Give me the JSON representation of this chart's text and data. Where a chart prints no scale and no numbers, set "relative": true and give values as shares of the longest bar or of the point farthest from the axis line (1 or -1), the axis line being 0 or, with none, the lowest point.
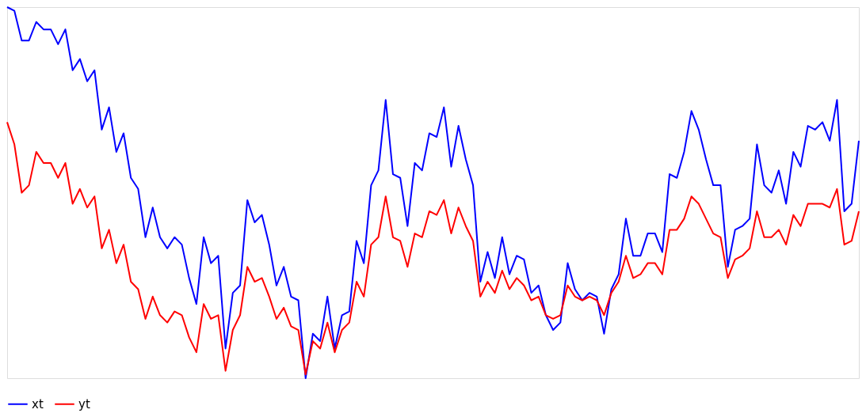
{
  "chart_data": {
    "type": "line",
    "relative": true,
    "legend": "bottom",
    "marker": "none",
    "line_style": "solid",
    "categories": [
      null,
      null,
      null,
      null,
      null,
      null,
      null,
      null,
      null,
      null,
      null,
      null,
      null,
      null,
      null,
      null,
      null,
      null,
      null,
      null,
      null,
      null,
      null,
      null,
      null,
      null,
      null,
      null,
      null,
      null,
      null,
      null,
      null,
      null,
      null,
      null,
      null,
      null,
      null,
      null,
      null,
      null,
      null,
      null,
      null,
      null,
      null,
      null,
      null,
      null,
      null,
      null,
      null,
      null,
      null,
      null,
      null,
      null,
      null,
      null,
      null,
      null,
      null,
      null,
      null,
      null,
      null,
      null,
      null,
      null,
      null,
      null,
      null,
      null,
      null,
      null,
      null,
      null,
      null,
      null,
      null,
      null,
      null,
      null,
      null,
      null,
      null,
      null,
      null,
      null,
      null,
      null,
      null,
      null,
      null,
      null,
      null,
      null,
      null,
      null,
      null,
      null,
      null,
      null,
      null,
      null,
      null,
      null,
      null,
      null,
      null,
      null,
      null,
      null,
      null,
      null,
      null,
      null
    ],
    "series": [
      {
        "name": "xt",
        "color": "#0000ff",
        "values": [
          1.0,
          0.99,
          0.91,
          0.91,
          0.96,
          0.94,
          0.94,
          0.9,
          0.94,
          0.83,
          0.86,
          0.8,
          0.83,
          0.67,
          0.73,
          0.61,
          0.66,
          0.54,
          0.51,
          0.38,
          0.46,
          0.38,
          0.35,
          0.38,
          0.36,
          0.27,
          0.2,
          0.38,
          0.31,
          0.33,
          0.08,
          0.23,
          0.25,
          0.48,
          0.42,
          0.44,
          0.36,
          0.25,
          0.3,
          0.22,
          0.21,
          0,
          0.12,
          0.1,
          0.22,
          0.08,
          0.17,
          0.18,
          0.37,
          0.31,
          0.52,
          0.56,
          0.75,
          0.55,
          0.54,
          0.41,
          0.58,
          0.56,
          0.66,
          0.65,
          0.73,
          0.57,
          0.68,
          0.59,
          0.52,
          0.26,
          0.34,
          0.27,
          0.38,
          0.28,
          0.33,
          0.32,
          0.23,
          0.25,
          0.17,
          0.13,
          0.15,
          0.31,
          0.24,
          0.21,
          0.23,
          0.22,
          0.12,
          0.24,
          0.28,
          0.43,
          0.33,
          0.33,
          0.39,
          0.39,
          0.34,
          0.55,
          0.54,
          0.61,
          0.72,
          0.67,
          0.59,
          0.52,
          0.52,
          0.3,
          0.4,
          0.41,
          0.43,
          0.63,
          0.52,
          0.5,
          0.56,
          0.47,
          0.61,
          0.57,
          0.68,
          0.67,
          0.69,
          0.64,
          0.75,
          0.45,
          0.47,
          0.64
        ]
      },
      {
        "name": "yt",
        "color": "#ff0000",
        "values": [
          0.69,
          0.63,
          0.5,
          0.52,
          0.61,
          0.58,
          0.58,
          0.54,
          0.58,
          0.47,
          0.51,
          0.46,
          0.49,
          0.35,
          0.4,
          0.31,
          0.36,
          0.26,
          0.24,
          0.16,
          0.22,
          0.17,
          0.15,
          0.18,
          0.17,
          0.11,
          0.07,
          0.2,
          0.16,
          0.17,
          0.02,
          0.13,
          0.17,
          0.3,
          0.26,
          0.27,
          0.22,
          0.16,
          0.19,
          0.14,
          0.13,
          0.01,
          0.1,
          0.08,
          0.15,
          0.07,
          0.13,
          0.15,
          0.26,
          0.22,
          0.36,
          0.38,
          0.49,
          0.38,
          0.37,
          0.3,
          0.39,
          0.38,
          0.45,
          0.44,
          0.48,
          0.39,
          0.46,
          0.41,
          0.37,
          0.22,
          0.26,
          0.23,
          0.29,
          0.24,
          0.27,
          0.25,
          0.21,
          0.22,
          0.17,
          0.16,
          0.17,
          0.25,
          0.22,
          0.21,
          0.22,
          0.21,
          0.17,
          0.23,
          0.26,
          0.33,
          0.27,
          0.28,
          0.31,
          0.31,
          0.28,
          0.4,
          0.4,
          0.43,
          0.49,
          0.47,
          0.43,
          0.39,
          0.38,
          0.27,
          0.32,
          0.33,
          0.35,
          0.45,
          0.38,
          0.38,
          0.4,
          0.36,
          0.44,
          0.41,
          0.47,
          0.47,
          0.47,
          0.46,
          0.51,
          0.36,
          0.37,
          0.45
        ]
      }
    ]
  }
}
